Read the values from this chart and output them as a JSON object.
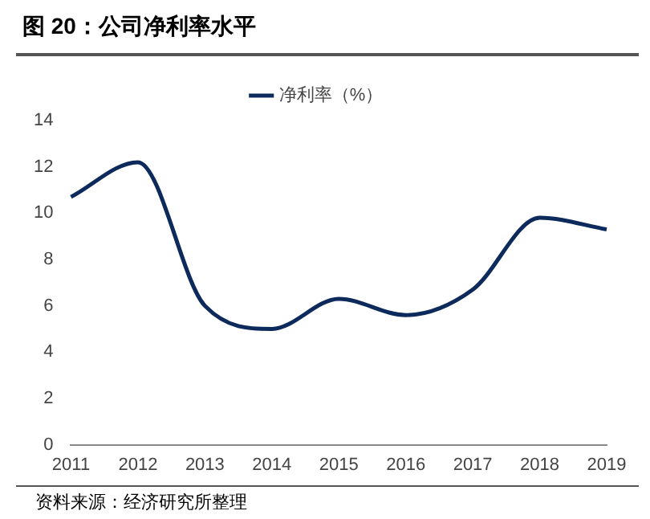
{
  "chart_data": {
    "type": "line",
    "title": "图 20：公司净利率水平",
    "categories": [
      "2011",
      "2012",
      "2013",
      "2014",
      "2015",
      "2016",
      "2017",
      "2018",
      "2019"
    ],
    "series": [
      {
        "name": "净利率（%）",
        "color": "#0d2a5c",
        "values": [
          10.7,
          12.2,
          6.0,
          5.0,
          6.3,
          5.6,
          6.7,
          9.8,
          9.3
        ]
      }
    ],
    "ylim": [
      0,
      14
    ],
    "yticks": [
      0,
      2,
      4,
      6,
      8,
      10,
      12,
      14
    ],
    "grid": false,
    "legend": "top",
    "marker": "none",
    "line_style": "solid",
    "annotations": [
      "资料来源：经济研究所整理"
    ]
  }
}
